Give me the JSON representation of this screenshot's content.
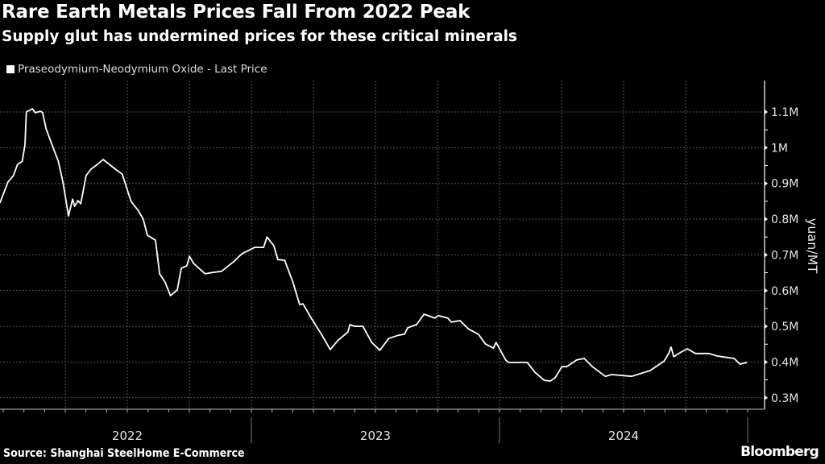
{
  "title": "Rare Earth Metals Prices Fall From 2022 Peak",
  "subtitle": "Supply glut has undermined prices for these critical minerals",
  "source": "Source: Shanghai SteelHome E-Commerce",
  "brand": "Bloomberg",
  "chart_data": {
    "type": "line",
    "title": "Rare Earth Metals Prices Fall From 2022 Peak",
    "ylabel": "yuan/MT",
    "xlabel": "",
    "ylim": [
      270000,
      1160000
    ],
    "xlim": [
      "2021-12-27",
      "2025-01-07"
    ],
    "grid": true,
    "legend": "top-left",
    "y_axis_side": "right",
    "yticks": [
      {
        "value": 1100000,
        "label": "1.1M"
      },
      {
        "value": 1000000,
        "label": "1M"
      },
      {
        "value": 900000,
        "label": "0.9M"
      },
      {
        "value": 800000,
        "label": "0.8M"
      },
      {
        "value": 700000,
        "label": "0.7M"
      },
      {
        "value": 600000,
        "label": "0.6M"
      },
      {
        "value": 500000,
        "label": "0.5M"
      },
      {
        "value": 400000,
        "label": "0.4M"
      },
      {
        "value": 300000,
        "label": "0.3M"
      }
    ],
    "xticks": [
      {
        "year": 2022,
        "label": "2022"
      },
      {
        "year": 2023,
        "label": "2023"
      },
      {
        "year": 2024,
        "label": "2024"
      }
    ],
    "colors": {
      "background": "#000000",
      "line": "#ffffff",
      "grid": "#555555"
    },
    "series": [
      {
        "name": "Praseodymium-Neodymium Oxide - Last Price",
        "points": [
          [
            "2021-12-27",
            845000
          ],
          [
            "2022-01-08",
            904000
          ],
          [
            "2022-01-16",
            922000
          ],
          [
            "2022-01-22",
            953000
          ],
          [
            "2022-01-29",
            962000
          ],
          [
            "2022-02-02",
            1008000
          ],
          [
            "2022-02-04",
            1100000
          ],
          [
            "2022-02-13",
            1109000
          ],
          [
            "2022-02-17",
            1098000
          ],
          [
            "2022-02-25",
            1102000
          ],
          [
            "2022-02-28",
            1098000
          ],
          [
            "2022-03-05",
            1053000
          ],
          [
            "2022-03-12",
            1017000
          ],
          [
            "2022-03-17",
            992000
          ],
          [
            "2022-03-23",
            962000
          ],
          [
            "2022-03-30",
            902000
          ],
          [
            "2022-04-07",
            809000
          ],
          [
            "2022-04-13",
            856000
          ],
          [
            "2022-04-16",
            836000
          ],
          [
            "2022-04-21",
            852000
          ],
          [
            "2022-04-25",
            843000
          ],
          [
            "2022-05-03",
            922000
          ],
          [
            "2022-05-10",
            940000
          ],
          [
            "2022-05-18",
            951000
          ],
          [
            "2022-05-28",
            967000
          ],
          [
            "2022-06-03",
            958000
          ],
          [
            "2022-06-15",
            940000
          ],
          [
            "2022-06-25",
            926000
          ],
          [
            "2022-07-08",
            850000
          ],
          [
            "2022-07-19",
            823000
          ],
          [
            "2022-07-26",
            800000
          ],
          [
            "2022-08-01",
            755000
          ],
          [
            "2022-08-13",
            741000
          ],
          [
            "2022-08-19",
            647000
          ],
          [
            "2022-08-27",
            624000
          ],
          [
            "2022-09-04",
            586000
          ],
          [
            "2022-09-14",
            602000
          ],
          [
            "2022-09-20",
            663000
          ],
          [
            "2022-09-28",
            669000
          ],
          [
            "2022-10-02",
            696000
          ],
          [
            "2022-10-08",
            676000
          ],
          [
            "2022-10-25",
            647000
          ],
          [
            "2022-11-06",
            651000
          ],
          [
            "2022-11-18",
            654000
          ],
          [
            "2022-12-06",
            681000
          ],
          [
            "2022-12-18",
            703000
          ],
          [
            "2023-01-06",
            721000
          ],
          [
            "2023-01-19",
            721000
          ],
          [
            "2023-01-24",
            750000
          ],
          [
            "2023-02-03",
            726000
          ],
          [
            "2023-02-09",
            687000
          ],
          [
            "2023-02-19",
            685000
          ],
          [
            "2023-03-03",
            624000
          ],
          [
            "2023-03-13",
            561000
          ],
          [
            "2023-03-18",
            563000
          ],
          [
            "2023-03-30",
            523000
          ],
          [
            "2023-04-14",
            478000
          ],
          [
            "2023-04-27",
            435000
          ],
          [
            "2023-05-08",
            460000
          ],
          [
            "2023-05-23",
            484000
          ],
          [
            "2023-05-26",
            505000
          ],
          [
            "2023-06-02",
            500000
          ],
          [
            "2023-06-14",
            500000
          ],
          [
            "2023-06-27",
            455000
          ],
          [
            "2023-07-09",
            433000
          ],
          [
            "2023-07-22",
            466000
          ],
          [
            "2023-08-05",
            475000
          ],
          [
            "2023-08-14",
            478000
          ],
          [
            "2023-08-19",
            496000
          ],
          [
            "2023-09-01",
            505000
          ],
          [
            "2023-09-12",
            534000
          ],
          [
            "2023-09-28",
            523000
          ],
          [
            "2023-10-03",
            530000
          ],
          [
            "2023-10-17",
            523000
          ],
          [
            "2023-10-22",
            512000
          ],
          [
            "2023-11-04",
            516000
          ],
          [
            "2023-11-16",
            493000
          ],
          [
            "2023-12-01",
            478000
          ],
          [
            "2023-12-11",
            451000
          ],
          [
            "2023-12-23",
            439000
          ],
          [
            "2023-12-27",
            455000
          ],
          [
            "2024-01-10",
            406000
          ],
          [
            "2024-01-14",
            399000
          ],
          [
            "2024-02-11",
            399000
          ],
          [
            "2024-02-22",
            372000
          ],
          [
            "2024-03-07",
            349000
          ],
          [
            "2024-03-16",
            347000
          ],
          [
            "2024-03-23",
            356000
          ],
          [
            "2024-04-02",
            387000
          ],
          [
            "2024-04-09",
            387000
          ],
          [
            "2024-04-24",
            406000
          ],
          [
            "2024-05-05",
            410000
          ],
          [
            "2024-05-17",
            387000
          ],
          [
            "2024-06-05",
            360000
          ],
          [
            "2024-06-14",
            365000
          ],
          [
            "2024-07-14",
            360000
          ],
          [
            "2024-07-29",
            369000
          ],
          [
            "2024-08-10",
            376000
          ],
          [
            "2024-08-31",
            403000
          ],
          [
            "2024-09-07",
            426000
          ],
          [
            "2024-09-10",
            442000
          ],
          [
            "2024-09-14",
            415000
          ],
          [
            "2024-09-25",
            428000
          ],
          [
            "2024-10-04",
            437000
          ],
          [
            "2024-10-16",
            424000
          ],
          [
            "2024-11-05",
            424000
          ],
          [
            "2024-11-17",
            417000
          ],
          [
            "2024-11-24",
            415000
          ],
          [
            "2024-12-12",
            410000
          ],
          [
            "2024-12-21",
            394000
          ],
          [
            "2024-12-31",
            399000
          ]
        ]
      }
    ]
  }
}
